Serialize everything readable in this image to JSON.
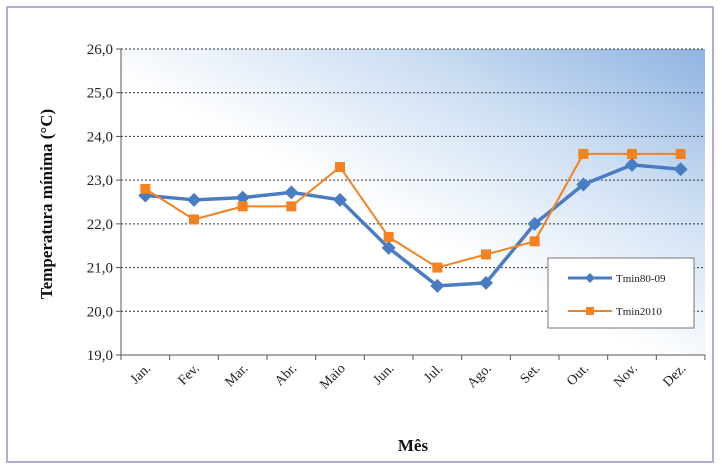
{
  "chart_data": {
    "type": "line",
    "categories": [
      "Jan.",
      "Fev.",
      "Mar.",
      "Abr.",
      "Maio",
      "Jun.",
      "Jul.",
      "Ago.",
      "Set.",
      "Out.",
      "Nov.",
      "Dez."
    ],
    "series": [
      {
        "name": "Tmin80-09",
        "color": "#4a7cc4",
        "marker": "diamond",
        "values": [
          22.65,
          22.55,
          22.6,
          22.72,
          22.55,
          21.45,
          20.58,
          20.65,
          22.0,
          22.9,
          23.35,
          23.25
        ]
      },
      {
        "name": "Tmin2010",
        "color": "#f58220",
        "marker": "square",
        "values": [
          22.8,
          22.1,
          22.4,
          22.4,
          23.3,
          21.7,
          21.0,
          21.3,
          21.6,
          23.6,
          23.6,
          23.6
        ]
      }
    ],
    "ylabel": "Temperatura mínima (°C)",
    "xlabel": "Mês",
    "ylim": [
      19.0,
      26.0
    ],
    "yticks": [
      "19,0",
      "20,0",
      "21,0",
      "22,0",
      "23,0",
      "24,0",
      "25,0",
      "26,0"
    ],
    "grid": "horizontal dashed",
    "legend": "right",
    "background": "gradient white to light blue (top-right)"
  }
}
